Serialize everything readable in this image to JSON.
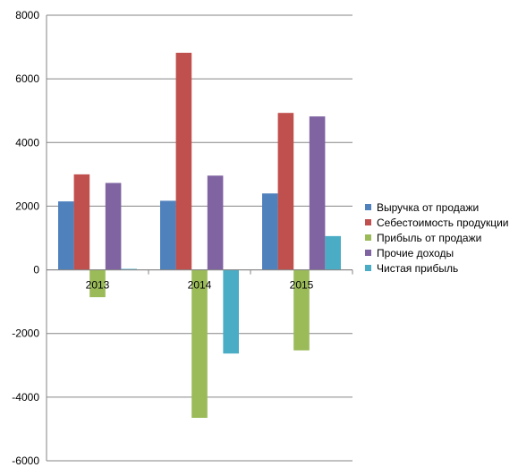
{
  "chart_data": {
    "type": "bar",
    "categories": [
      "2013",
      "2014",
      "2015"
    ],
    "ylim": [
      -6000,
      8000
    ],
    "yticks": [
      -6000,
      -4000,
      -2000,
      0,
      2000,
      4000,
      6000,
      8000
    ],
    "grid": true,
    "legend_position": "right",
    "series": [
      {
        "name": "Выручка от продажи",
        "color": "#4F81BD",
        "values": [
          2150,
          2170,
          2400
        ]
      },
      {
        "name": "Себестоимость продукции",
        "color": "#C0504D",
        "values": [
          3000,
          6820,
          4930
        ]
      },
      {
        "name": "Прибыль от продажи",
        "color": "#9BBB59",
        "values": [
          -860,
          -4650,
          -2530
        ]
      },
      {
        "name": "Прочие доходы",
        "color": "#8064A2",
        "values": [
          2730,
          2960,
          4820
        ]
      },
      {
        "name": "Чистая прибыль",
        "color": "#4BACC6",
        "values": [
          30,
          -2630,
          1060
        ]
      }
    ]
  }
}
